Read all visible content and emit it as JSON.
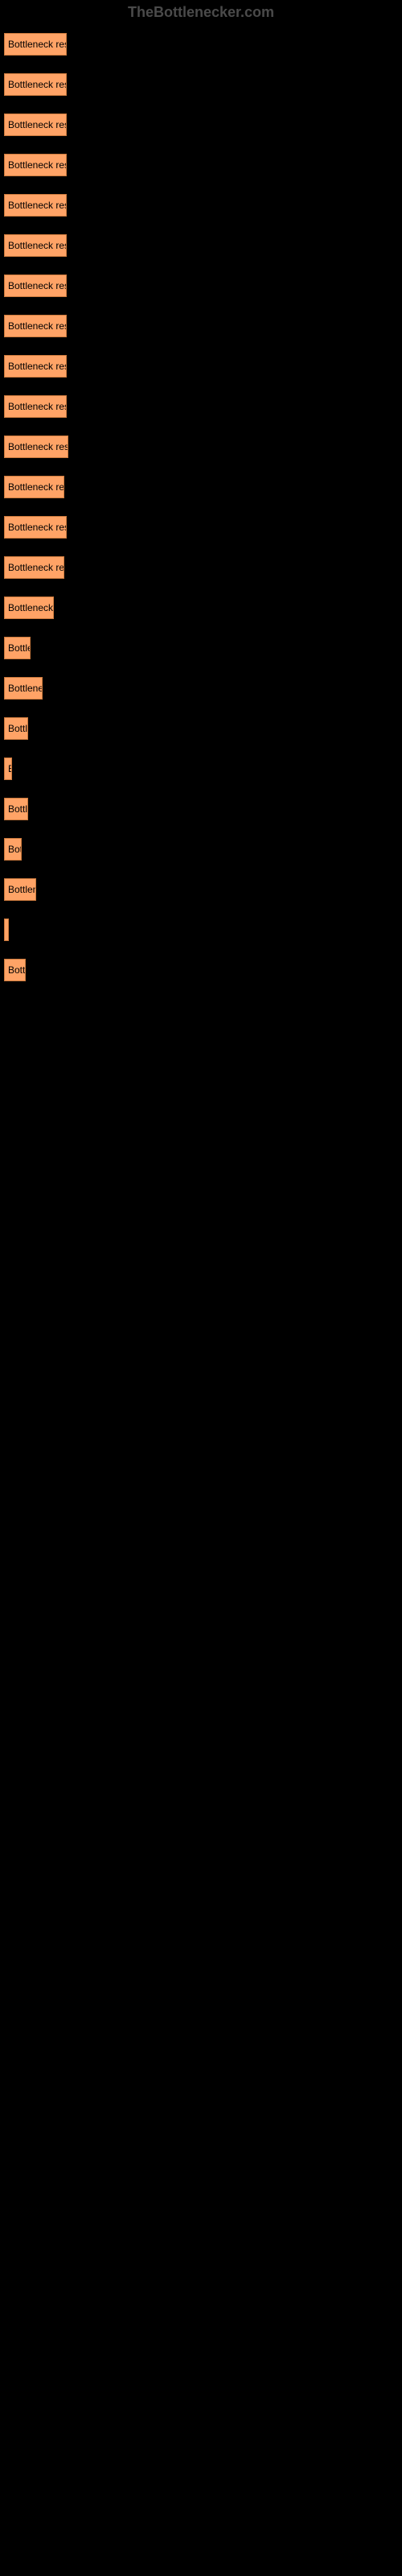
{
  "header": {
    "title": "TheBottlenecker.com"
  },
  "chart": {
    "type": "bar",
    "bar_color": "#ffa366",
    "bar_border_color": "#cc7a3d",
    "background_color": "#000000",
    "label_color": "#000000",
    "label_fontsize": 12,
    "header_color": "#4a4a4a",
    "bars": [
      {
        "label": "Bottleneck result",
        "width": 78
      },
      {
        "label": "Bottleneck result",
        "width": 78
      },
      {
        "label": "Bottleneck result",
        "width": 78
      },
      {
        "label": "Bottleneck result",
        "width": 78
      },
      {
        "label": "Bottleneck result",
        "width": 78
      },
      {
        "label": "Bottleneck result",
        "width": 78
      },
      {
        "label": "Bottleneck result",
        "width": 78
      },
      {
        "label": "Bottleneck result",
        "width": 78
      },
      {
        "label": "Bottleneck result",
        "width": 78
      },
      {
        "label": "Bottleneck result",
        "width": 78
      },
      {
        "label": "Bottleneck result",
        "width": 80
      },
      {
        "label": "Bottleneck resul",
        "width": 75
      },
      {
        "label": "Bottleneck result",
        "width": 78
      },
      {
        "label": "Bottleneck resul",
        "width": 75
      },
      {
        "label": "Bottleneck r",
        "width": 62
      },
      {
        "label": "Bottler",
        "width": 33
      },
      {
        "label": "Bottleneck",
        "width": 48
      },
      {
        "label": "Bottle",
        "width": 30
      },
      {
        "label": "B",
        "width": 10
      },
      {
        "label": "Bottle",
        "width": 30
      },
      {
        "label": "Bot",
        "width": 22
      },
      {
        "label": "Bottlene",
        "width": 40
      },
      {
        "label": "",
        "width": 5
      },
      {
        "label": "Bottl",
        "width": 27
      }
    ]
  }
}
